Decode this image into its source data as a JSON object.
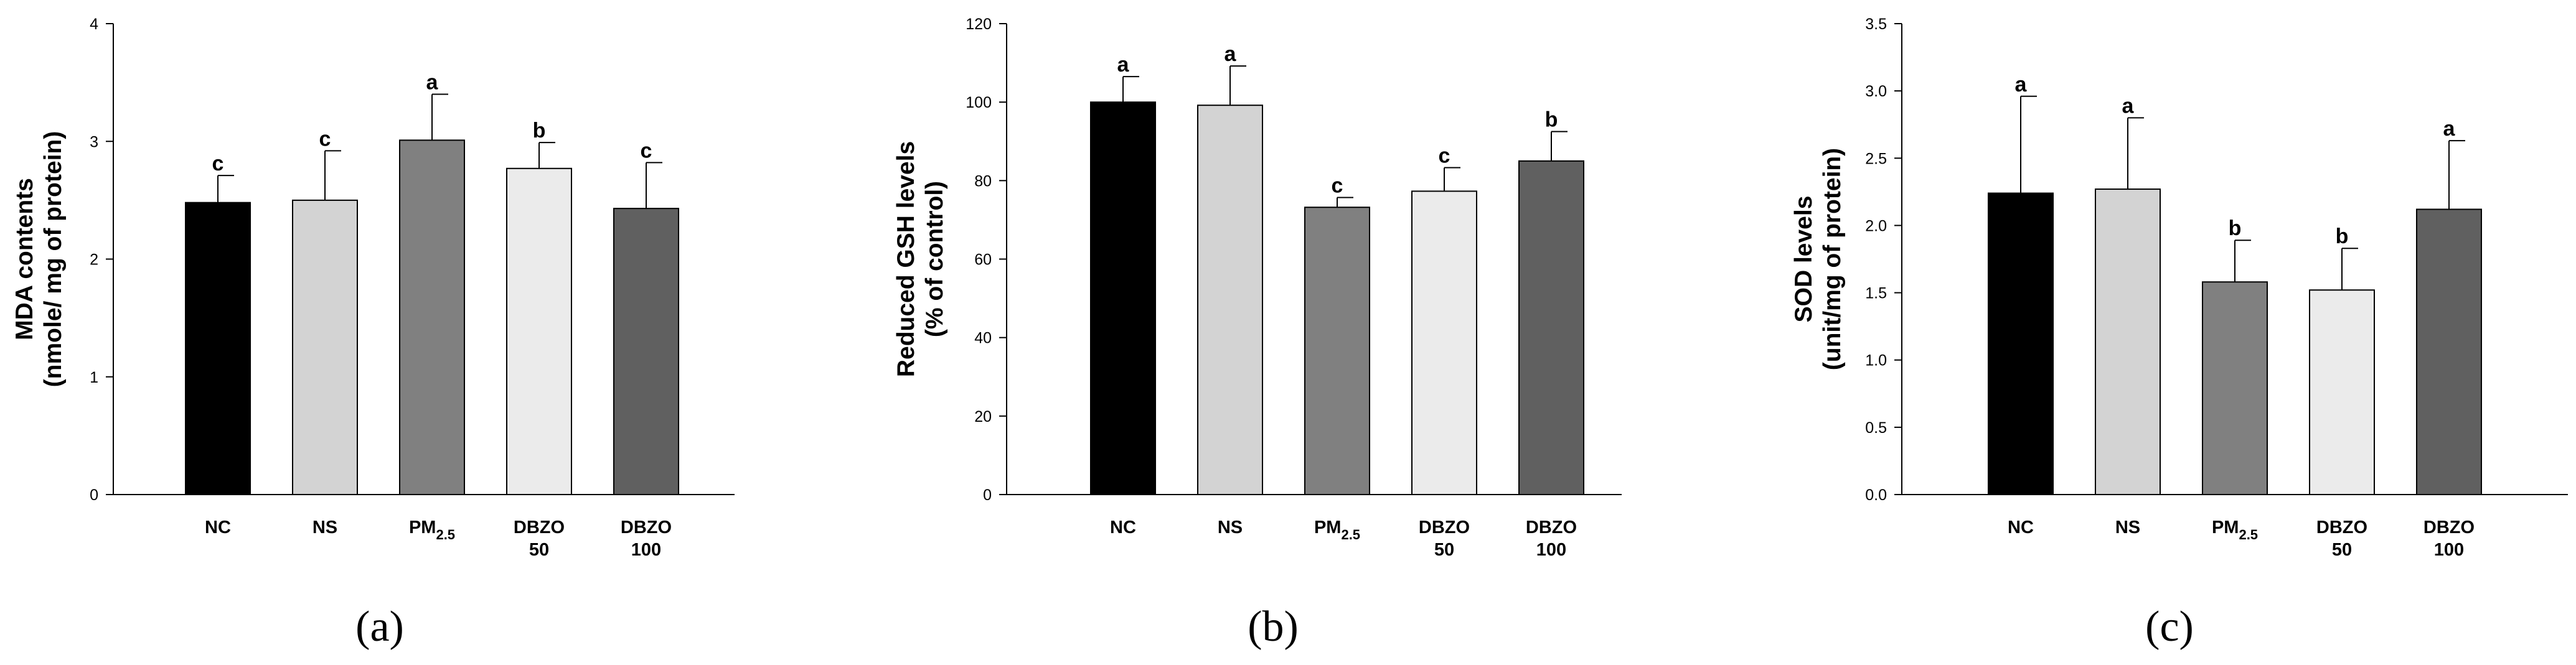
{
  "chart_data": [
    {
      "type": "bar",
      "panel": "(a)",
      "ylabel": [
        "MDA contents",
        "(nmole/ mg of protein)"
      ],
      "ylim": [
        0,
        4
      ],
      "yticks": [
        0,
        1,
        2,
        3,
        4
      ],
      "tick_decimals": 0,
      "categories": [
        [
          "NC"
        ],
        [
          "NS"
        ],
        [
          "PM",
          "2.5"
        ],
        [
          "DBZO",
          "50"
        ],
        [
          "DBZO",
          "100"
        ]
      ],
      "values": [
        2.48,
        2.5,
        3.01,
        2.77,
        2.43
      ],
      "errors": [
        0.23,
        0.42,
        0.39,
        0.22,
        0.39
      ],
      "labels": [
        "c",
        "c",
        "a",
        "b",
        "c"
      ]
    },
    {
      "type": "bar",
      "panel": "(b)",
      "ylabel": [
        "Reduced GSH levels",
        "(% of control)"
      ],
      "ylim": [
        0,
        120
      ],
      "yticks": [
        0,
        20,
        40,
        60,
        80,
        100,
        120
      ],
      "tick_decimals": 0,
      "categories": [
        [
          "NC"
        ],
        [
          "NS"
        ],
        [
          "PM",
          "2.5"
        ],
        [
          "DBZO",
          "50"
        ],
        [
          "DBZO",
          "100"
        ]
      ],
      "values": [
        100,
        99.2,
        73.2,
        77.3,
        85.0
      ],
      "errors": [
        6.5,
        10.0,
        2.5,
        6.0,
        7.5
      ],
      "labels": [
        "a",
        "a",
        "c",
        "c",
        "b"
      ]
    },
    {
      "type": "bar",
      "panel": "(c)",
      "ylabel": [
        "SOD levels",
        "(unit/mg of protein)"
      ],
      "ylim": [
        0,
        3.5
      ],
      "yticks": [
        0,
        0.5,
        1.0,
        1.5,
        2.0,
        2.5,
        3.0,
        3.5
      ],
      "tick_decimals": 1,
      "categories": [
        [
          "NC"
        ],
        [
          "NS"
        ],
        [
          "PM",
          "2.5"
        ],
        [
          "DBZO",
          "50"
        ],
        [
          "DBZO",
          "100"
        ]
      ],
      "values": [
        2.24,
        2.27,
        1.58,
        1.52,
        2.12
      ],
      "errors": [
        0.72,
        0.53,
        0.31,
        0.31,
        0.51
      ],
      "labels": [
        "a",
        "a",
        "b",
        "b",
        "a"
      ]
    }
  ],
  "colors": {
    "bar_fills": [
      "#000000",
      "#d3d3d3",
      "#808080",
      "#ebebeb",
      "#606060"
    ],
    "stroke": "#000000"
  }
}
